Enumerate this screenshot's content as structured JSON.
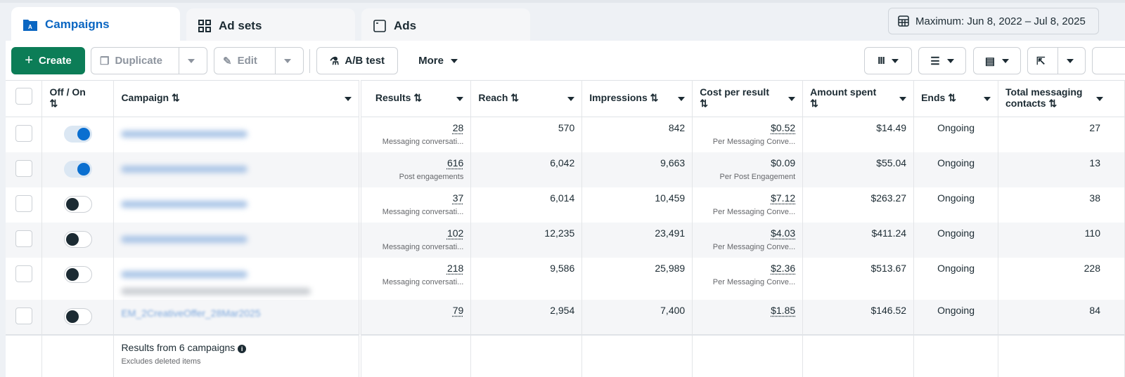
{
  "tabs": [
    {
      "label": "Campaigns",
      "icon": "campaign-folder-icon",
      "active": true
    },
    {
      "label": "Ad sets",
      "icon": "grid-icon"
    },
    {
      "label": "Ads",
      "icon": "ad-window-icon"
    }
  ],
  "date_range": "Maximum: Jun 8, 2022 – Jul 8, 2025",
  "toolbar": {
    "create": "Create",
    "duplicate": "Duplicate",
    "edit": "Edit",
    "ab_test": "A/B test",
    "more": "More"
  },
  "colors": {
    "accent": "#0a66c2",
    "create": "#0c7d57",
    "toggle_on": "#0a6fd0"
  },
  "columns": [
    "Off / On",
    "Campaign",
    "Results",
    "Reach",
    "Impressions",
    "Cost per result",
    "Amount spent",
    "Ends",
    "Total messaging contacts"
  ],
  "rows": [
    {
      "on": true,
      "name": "",
      "results": "28",
      "results_type": "Messaging conversati...",
      "reach": "570",
      "impressions": "842",
      "cost": "$0.52",
      "cost_type": "Per Messaging Conve...",
      "spent": "$14.49",
      "ends": "Ongoing",
      "contacts": "27"
    },
    {
      "on": true,
      "name": "",
      "results": "616",
      "results_type": "Post engagements",
      "reach": "6,042",
      "impressions": "9,663",
      "cost": "$0.09",
      "cost_type": "Per Post Engagement",
      "spent": "$55.04",
      "ends": "Ongoing",
      "contacts": "13"
    },
    {
      "on": false,
      "name": "",
      "results": "37",
      "results_type": "Messaging conversati...",
      "reach": "6,014",
      "impressions": "10,459",
      "cost": "$7.12",
      "cost_type": "Per Messaging Conve...",
      "spent": "$263.27",
      "ends": "Ongoing",
      "contacts": "38"
    },
    {
      "on": false,
      "name": "",
      "results": "102",
      "results_type": "Messaging conversati...",
      "reach": "12,235",
      "impressions": "23,491",
      "cost": "$4.03",
      "cost_type": "Per Messaging Conve...",
      "spent": "$411.24",
      "ends": "Ongoing",
      "contacts": "110"
    },
    {
      "on": false,
      "name": "",
      "results": "218",
      "results_type": "Messaging conversati...",
      "reach": "9,586",
      "impressions": "25,989",
      "cost": "$2.36",
      "cost_type": "Per Messaging Conve...",
      "spent": "$513.67",
      "ends": "Ongoing",
      "contacts": "228"
    },
    {
      "on": false,
      "name": "EM_2CreativeOffer_28Mar2025",
      "results": "79",
      "results_type": "",
      "reach": "2,954",
      "impressions": "7,400",
      "cost": "$1.85",
      "cost_type": "",
      "spent": "$146.52",
      "ends": "Ongoing",
      "contacts": "84"
    }
  ],
  "footer": {
    "summary": "Results from 6 campaigns",
    "note": "Excludes deleted items"
  }
}
